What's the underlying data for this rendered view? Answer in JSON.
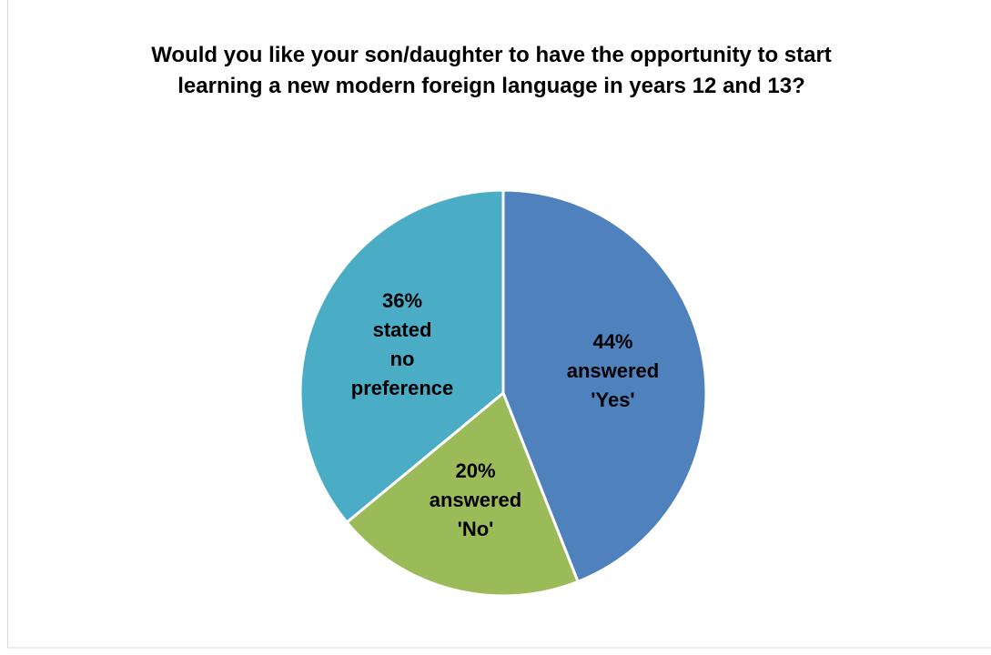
{
  "chart_data": {
    "type": "pie",
    "title": "Would you like your son/daughter to have the opportunity to start learning a new modern foreign language in years 12 and 13?",
    "values": [
      44,
      20,
      36
    ],
    "value_labels": [
      "44% answered 'Yes'",
      "20% answered 'No'",
      "36% stated no preference"
    ],
    "colors": [
      "#4f81bd",
      "#9bbb59",
      "#4bacc6"
    ]
  }
}
